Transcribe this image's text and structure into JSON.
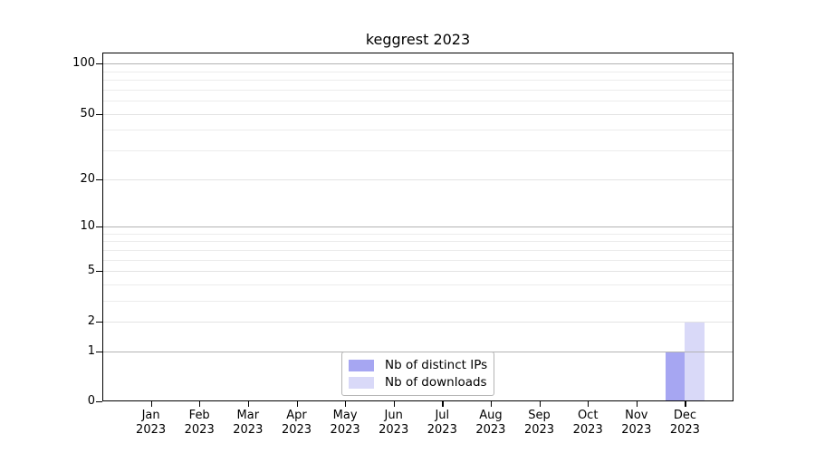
{
  "title": "keggrest 2023",
  "legend": {
    "items": [
      {
        "label": "Nb of distinct IPs",
        "color": "#a6a6f2"
      },
      {
        "label": "Nb of downloads",
        "color": "#d9d9f8"
      }
    ]
  },
  "y_axis": {
    "major_ticks": [
      0,
      1,
      2,
      5,
      10,
      20,
      50,
      100
    ],
    "decade_gridlines": [
      1,
      10,
      100
    ],
    "minor_gridlines": [
      3,
      4,
      6,
      7,
      8,
      9,
      30,
      40,
      60,
      70,
      80,
      90
    ]
  },
  "x_axis": {
    "months": [
      "Jan",
      "Feb",
      "Mar",
      "Apr",
      "May",
      "Jun",
      "Jul",
      "Aug",
      "Sep",
      "Oct",
      "Nov",
      "Dec"
    ],
    "year": "2023"
  },
  "colors": {
    "decade_gridline": "#b3b3b3",
    "major_gridline": "#e3e3e3",
    "minor_gridline": "#ececec",
    "axis": "#000000",
    "background": "#ffffff"
  },
  "chart_data": {
    "type": "bar",
    "title": "keggrest 2023",
    "categories": [
      "Jan 2023",
      "Feb 2023",
      "Mar 2023",
      "Apr 2023",
      "May 2023",
      "Jun 2023",
      "Jul 2023",
      "Aug 2023",
      "Sep 2023",
      "Oct 2023",
      "Nov 2023",
      "Dec 2023"
    ],
    "series": [
      {
        "name": "Nb of distinct IPs",
        "color": "#a6a6f2",
        "values": [
          0,
          0,
          0,
          0,
          0,
          0,
          0,
          0,
          0,
          0,
          0,
          1
        ]
      },
      {
        "name": "Nb of downloads",
        "color": "#d9d9f8",
        "values": [
          0,
          0,
          0,
          0,
          0,
          0,
          0,
          0,
          0,
          0,
          0,
          2
        ]
      }
    ],
    "xlabel": "",
    "ylabel": "",
    "y_scale": "log10(1+y)",
    "yticks": [
      0,
      1,
      2,
      5,
      10,
      20,
      50,
      100
    ],
    "ylim": [
      0,
      117
    ],
    "grid": true,
    "legend_position": "lower center"
  }
}
